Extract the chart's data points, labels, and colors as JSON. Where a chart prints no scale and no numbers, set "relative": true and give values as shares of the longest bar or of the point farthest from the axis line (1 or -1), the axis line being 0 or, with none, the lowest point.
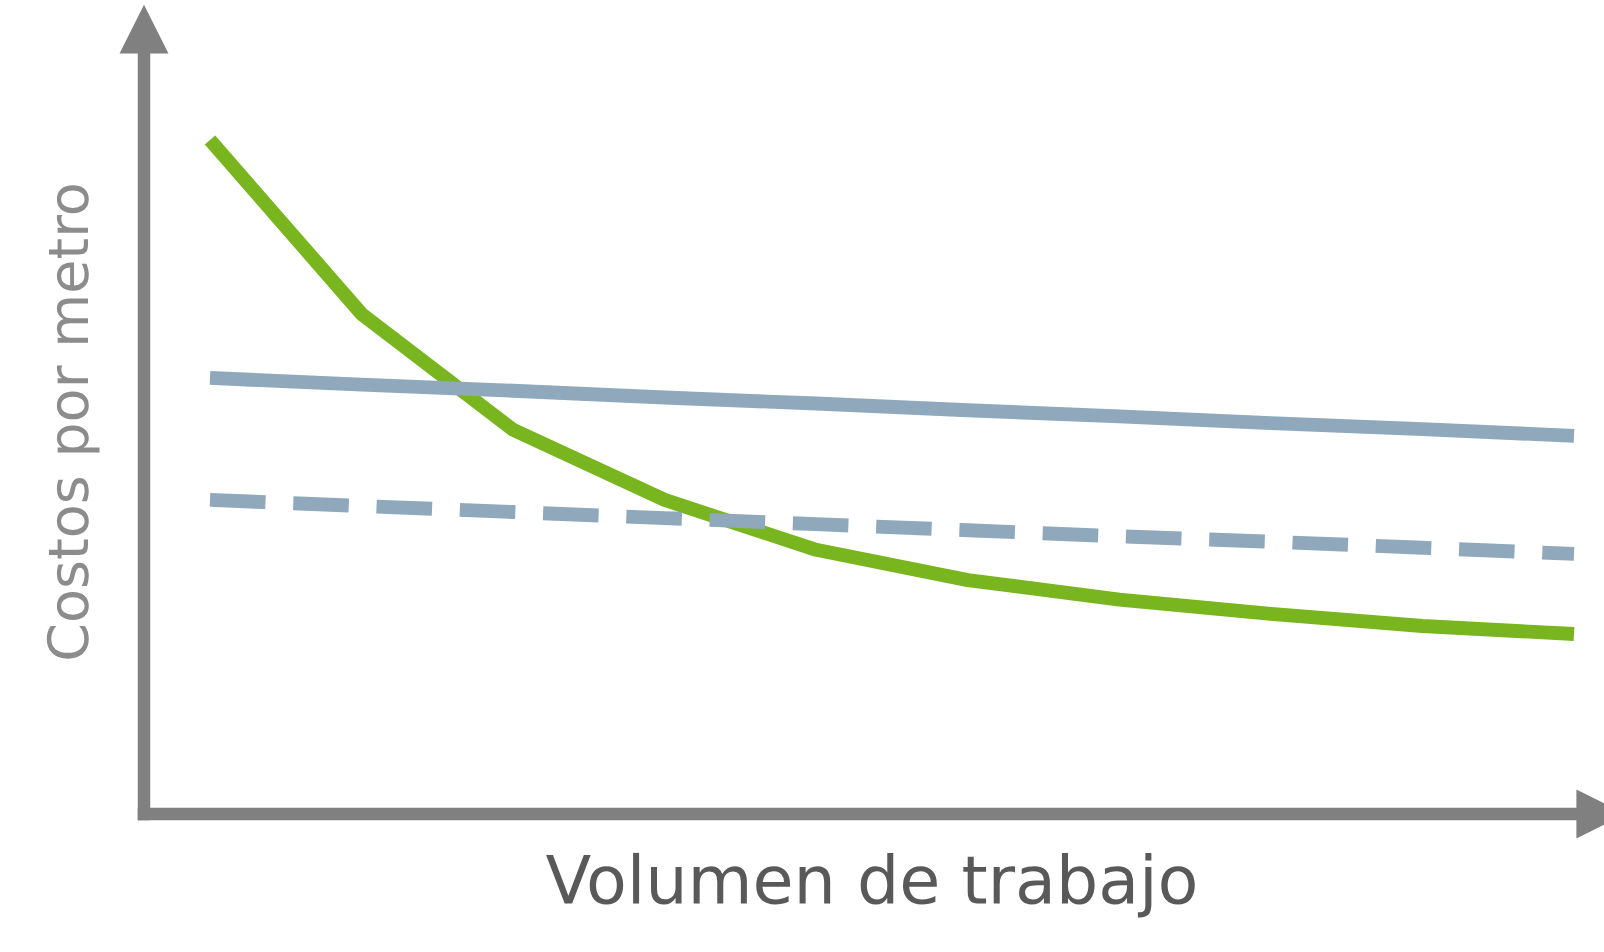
{
  "chart_data": {
    "type": "line",
    "relative": true,
    "xlabel": "Volumen de trabajo",
    "ylabel": "Costos por metro",
    "categories": [
      null,
      null,
      null,
      null,
      null,
      null,
      null,
      null,
      null,
      null
    ],
    "grid": false,
    "legend": false,
    "tick_labels": false,
    "marker": "none",
    "series": [
      {
        "color": "#78b51e",
        "line_style": "solid",
        "values": [
          1.0,
          0.742,
          0.57,
          0.466,
          0.392,
          0.347,
          0.318,
          0.297,
          0.279,
          0.267
        ]
      },
      {
        "color": "#8fa8bb",
        "line_style": "solid",
        "values": [
          0.647,
          0.637,
          0.628,
          0.618,
          0.609,
          0.599,
          0.59,
          0.58,
          0.571,
          0.561
        ]
      },
      {
        "color": "#8fa8bb",
        "line_style": "dashed",
        "values": [
          0.466,
          0.457,
          0.448,
          0.439,
          0.43,
          0.421,
          0.412,
          0.404,
          0.395,
          0.386
        ]
      }
    ]
  }
}
